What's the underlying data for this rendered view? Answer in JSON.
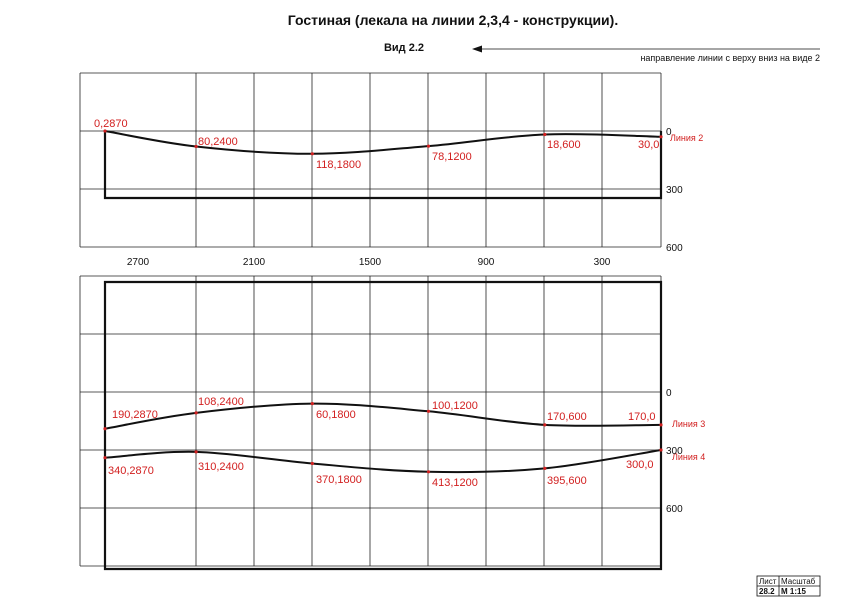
{
  "title": "Гостиная (лекала на линии 2,3,4 - конструкции).",
  "view_label": "Вид 2.2",
  "direction_note": "направление линии  с верху вниз на виде 2",
  "x_ticks": [
    "2700",
    "2100",
    "1500",
    "900",
    "300"
  ],
  "top_y_ticks": [
    "0",
    "300",
    "600"
  ],
  "bottom_y_ticks": [
    "0",
    "300",
    "600"
  ],
  "line2": {
    "label": "Линия 2",
    "points": [
      {
        "label": "0,2870",
        "x": 2870,
        "y": 0
      },
      {
        "label": "80,2400",
        "x": 2400,
        "y": 80
      },
      {
        "label": "118,1800",
        "x": 1800,
        "y": 118
      },
      {
        "label": "78,1200",
        "x": 1200,
        "y": 78
      },
      {
        "label": "18,600",
        "x": 600,
        "y": 18
      },
      {
        "label": "30,0",
        "x": 0,
        "y": 30
      }
    ]
  },
  "line3": {
    "label": "Линия 3",
    "points": [
      {
        "label": "190,2870",
        "x": 2870,
        "y": 190
      },
      {
        "label": "108,2400",
        "x": 2400,
        "y": 108
      },
      {
        "label": "60,1800",
        "x": 1800,
        "y": 60
      },
      {
        "label": "100,1200",
        "x": 1200,
        "y": 100
      },
      {
        "label": "170,600",
        "x": 600,
        "y": 170
      },
      {
        "label": "170,0",
        "x": 0,
        "y": 170
      }
    ]
  },
  "line4": {
    "label": "Линия 4",
    "points": [
      {
        "label": "340,2870",
        "x": 2870,
        "y": 340
      },
      {
        "label": "310,2400",
        "x": 2400,
        "y": 310
      },
      {
        "label": "370,1800",
        "x": 1800,
        "y": 370
      },
      {
        "label": "413,1200",
        "x": 1200,
        "y": 413
      },
      {
        "label": "395,600",
        "x": 600,
        "y": 395
      },
      {
        "label": "300,0",
        "x": 0,
        "y": 300
      }
    ]
  },
  "stamp": {
    "sheet_header": "Лист",
    "scale_header": "Масштаб",
    "sheet_value": "28.2",
    "scale_value": "М 1:15"
  }
}
